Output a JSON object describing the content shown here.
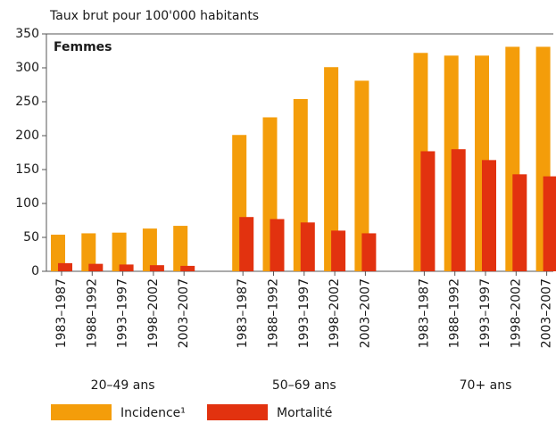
{
  "chart_data": {
    "type": "bar",
    "title": "Taux brut pour 100'000 habitants",
    "subtitle": "Femmes",
    "categories": [
      "1983–1987",
      "1988–1992",
      "1993–1997",
      "1998–2002",
      "2003–2007",
      "1983–1987",
      "1988–1992",
      "1993–1997",
      "1998–2002",
      "2003–2007",
      "1983–1987",
      "1988–1992",
      "1993–1997",
      "1998–2002",
      "2003–2007"
    ],
    "groups": [
      "20–49 ans",
      "50–69 ans",
      "70+ ans"
    ],
    "series": [
      {
        "name": "Incidence¹",
        "color": "#f49d0a",
        "values": [
          54,
          56,
          57,
          63,
          67,
          201,
          227,
          254,
          301,
          281,
          322,
          318,
          318,
          331,
          331
        ]
      },
      {
        "name": "Mortalité",
        "color": "#e2320f",
        "values": [
          12,
          11,
          10,
          9,
          8,
          80,
          77,
          72,
          60,
          56,
          177,
          180,
          164,
          143,
          140
        ]
      }
    ],
    "ylim": [
      0,
      350
    ],
    "yticks": [
      0,
      50,
      100,
      150,
      200,
      250,
      300,
      350
    ]
  }
}
